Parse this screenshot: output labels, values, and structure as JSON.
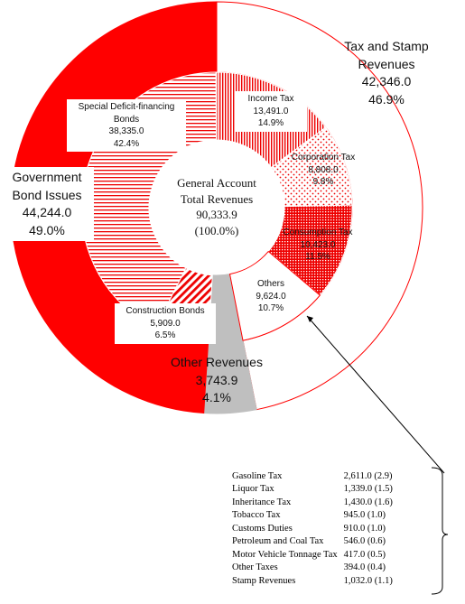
{
  "chart_data": {
    "type": "nested-donut",
    "center": {
      "title_lines": [
        "General Account",
        "Total Revenues"
      ],
      "total": {
        "value": 90333.9,
        "label": "90,333.9"
      },
      "total_percent": {
        "value": 100,
        "label": "(100.0%)"
      }
    },
    "color": "#ff0000",
    "rings": [
      {
        "categories": [
          "Tax and Stamp Revenues",
          "Other Revenues",
          "Government Bond Issues"
        ],
        "values": [
          42346,
          3743.9,
          44244
        ],
        "value_labels": [
          "42,346.0",
          "3,743.9",
          "44,244.0"
        ],
        "percents": [
          46.9,
          4.1,
          49.0
        ],
        "percent_labels": [
          "46.9%",
          "4.1%",
          "49.0%"
        ],
        "patterns": [
          "outline",
          "gray",
          "solid"
        ]
      },
      {
        "categories": [
          "Income Tax",
          "Corporation Tax",
          "Consumption Tax",
          "Others",
          "Construction Bonds",
          "Special Deficit-financing Bonds"
        ],
        "values": [
          13491,
          8808,
          10423,
          9624,
          5909,
          38335
        ],
        "value_labels": [
          "13,491.0",
          "8,808.0",
          "10,423.0",
          "9,624.0",
          "5,909.0",
          "38,335.0"
        ],
        "percents": [
          14.9,
          9.8,
          11.5,
          10.7,
          6.5,
          42.4
        ],
        "percent_labels": [
          "14.9%",
          "9.8%",
          "11.5%",
          "10.7%",
          "6.5%",
          "42.4%"
        ],
        "patterns": [
          "vertical",
          "dots",
          "cross",
          "outline",
          "diagonal",
          "horizontal"
        ]
      }
    ],
    "breakdown_table": [
      [
        "Gasoline Tax",
        "2,611.0 (2.9)"
      ],
      [
        "Liquor Tax",
        "1,339.0 (1.5)"
      ],
      [
        "Inheritance Tax",
        "1,430.0 (1.6)"
      ],
      [
        "Tobacco Tax",
        "945.0 (1.0)"
      ],
      [
        "Customs Duties",
        "910.0 (1.0)"
      ],
      [
        "Petroleum and Coal Tax",
        "546.0 (0.6)"
      ],
      [
        "Motor Vehicle Tonnage Tax",
        "417.0 (0.5)"
      ],
      [
        "Other Taxes",
        "394.0 (0.4)"
      ],
      [
        "Stamp Revenues",
        "1,032.0 (1.1)"
      ]
    ]
  }
}
